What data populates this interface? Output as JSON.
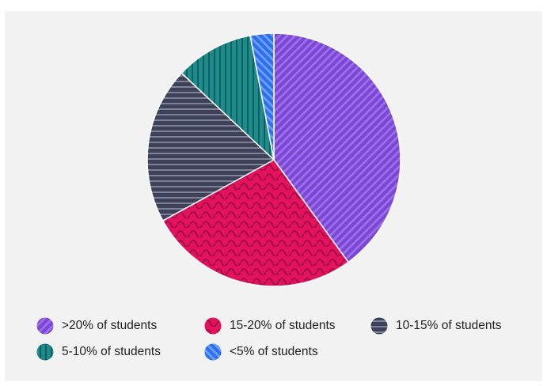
{
  "chart_data": {
    "type": "pie",
    "title": "",
    "legend_position": "bottom",
    "slices": [
      {
        "label": ">20% of students",
        "value": 40,
        "color": "#7b45d6",
        "pattern": "diagonal-stripes"
      },
      {
        "label": "15-20% of students",
        "value": 27,
        "color": "#e3125f",
        "pattern": "zigzag"
      },
      {
        "label": "10-15% of students",
        "value": 20,
        "color": "#3e4158",
        "pattern": "horizontal-stripes"
      },
      {
        "label": "5-10% of students",
        "value": 10,
        "color": "#1f8a8a",
        "pattern": "vertical-stripes"
      },
      {
        "label": "<5% of students",
        "value": 3,
        "color": "#2a6ff0",
        "pattern": "diagonal-stripes-reverse"
      }
    ]
  },
  "legend": {
    "items": [
      {
        "label": ">20% of students"
      },
      {
        "label": "15-20% of students"
      },
      {
        "label": "10-15% of students"
      },
      {
        "label": "5-10% of students"
      },
      {
        "label": "<5% of students"
      }
    ]
  }
}
